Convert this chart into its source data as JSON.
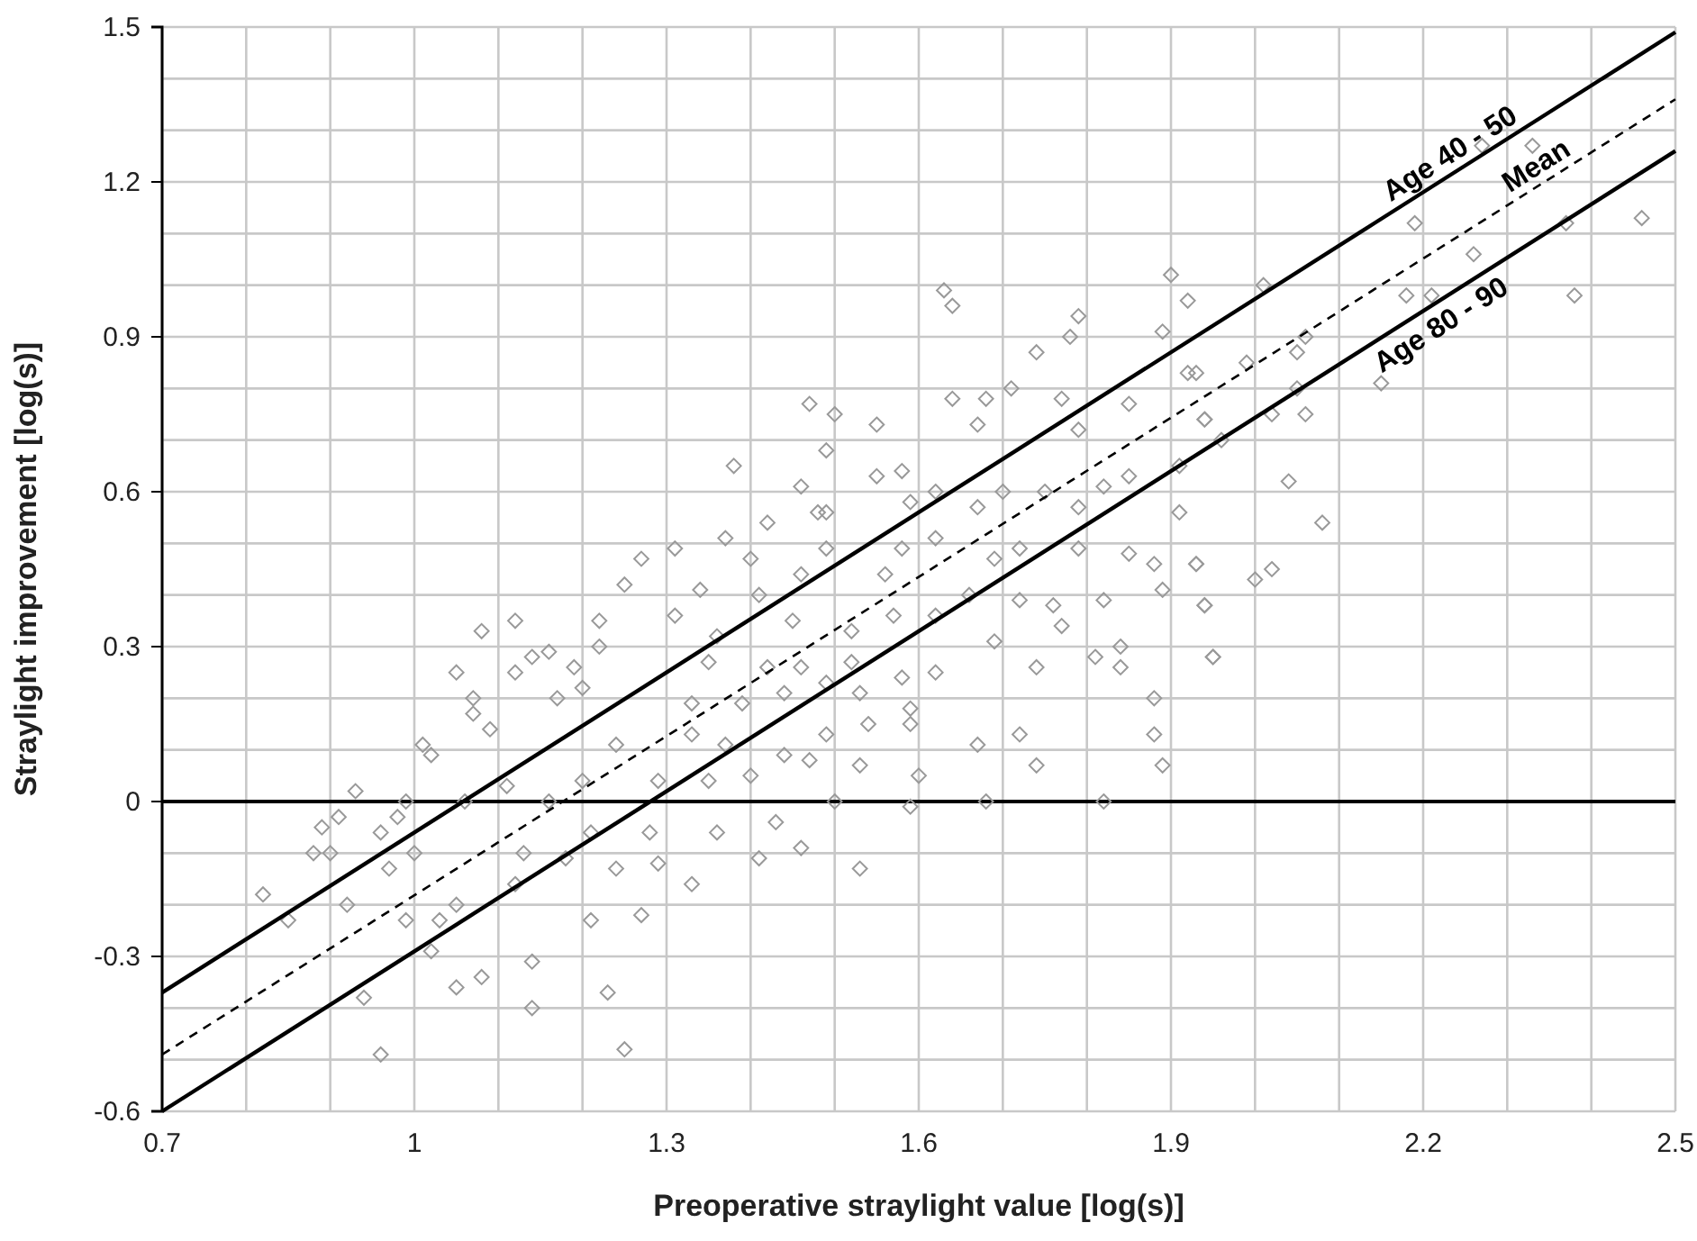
{
  "chart_data": {
    "type": "scatter",
    "xlabel": "Preoperative straylight value [log(s)]",
    "ylabel": "Straylight improvement [log(s)]",
    "xlim": [
      0.7,
      2.5
    ],
    "ylim": [
      -0.6,
      1.5
    ],
    "xticks": [
      0.7,
      {
        "value": 0.8,
        "label": null
      },
      {
        "value": 0.9,
        "label": null
      },
      1,
      {
        "value": 1.1,
        "label": null
      },
      {
        "value": 1.2,
        "label": null
      },
      1.3,
      {
        "value": 1.4,
        "label": null
      },
      {
        "value": 1.5,
        "label": null
      },
      1.6,
      {
        "value": 1.7,
        "label": null
      },
      {
        "value": 1.8,
        "label": null
      },
      1.9,
      {
        "value": 2.0,
        "label": null
      },
      {
        "value": 2.1,
        "label": null
      },
      2.2,
      {
        "value": 2.3,
        "label": null
      },
      {
        "value": 2.4,
        "label": null
      },
      2.5
    ],
    "yticks": [
      -0.6,
      {
        "value": -0.5,
        "label": null
      },
      {
        "value": -0.4,
        "label": null
      },
      -0.3,
      {
        "value": -0.2,
        "label": null
      },
      {
        "value": -0.1,
        "label": null
      },
      0,
      {
        "value": 0.1,
        "label": null
      },
      {
        "value": 0.2,
        "label": null
      },
      0.3,
      {
        "value": 0.4,
        "label": null
      },
      {
        "value": 0.5,
        "label": null
      },
      0.6,
      {
        "value": 0.7,
        "label": null
      },
      {
        "value": 0.8,
        "label": null
      },
      0.9,
      {
        "value": 1.0,
        "label": null
      },
      {
        "value": 1.1,
        "label": null
      },
      1.2,
      {
        "value": 1.3,
        "label": null
      },
      {
        "value": 1.4,
        "label": null
      },
      1.5
    ],
    "grid": true,
    "ref_lines": [
      {
        "axis": "y",
        "value": 0,
        "color": "#000000"
      }
    ],
    "series": [
      {
        "color": "#999999",
        "marker": "diamond",
        "x": [
          0.82,
          0.85,
          0.88,
          0.89,
          0.9,
          0.91,
          0.93,
          0.92,
          0.94,
          0.96,
          0.96,
          0.98,
          0.97,
          0.99,
          0.99,
          1.0,
          1.01,
          1.02,
          1.02,
          1.05,
          1.05,
          1.08,
          1.08,
          1.07,
          1.07,
          1.09,
          1.12,
          1.14,
          1.12,
          1.14,
          1.14,
          1.16,
          1.17,
          1.19,
          1.2,
          1.22,
          1.22,
          1.21,
          1.23,
          1.25,
          1.27,
          1.31,
          1.31,
          1.25,
          1.27,
          1.29,
          1.28,
          1.13,
          1.18,
          1.21,
          1.24,
          1.05,
          1.03,
          1.12,
          1.06,
          1.11,
          1.16,
          1.2,
          1.24,
          1.29,
          1.63,
          1.64,
          1.74,
          1.78,
          1.79,
          1.9,
          1.92,
          1.47,
          1.5,
          1.55,
          1.49,
          1.38,
          1.64,
          1.68,
          1.71,
          1.77,
          1.85,
          1.89,
          1.92,
          1.67,
          1.79,
          1.46,
          1.55,
          1.58,
          1.62,
          1.7,
          1.75,
          1.82,
          1.85,
          1.91,
          1.94,
          1.42,
          1.37,
          1.48,
          1.49,
          1.59,
          1.67,
          1.79,
          1.91,
          1.4,
          1.49,
          1.58,
          1.62,
          1.69,
          1.72,
          1.79,
          1.85,
          1.88,
          1.93,
          1.34,
          1.46,
          1.56,
          1.66,
          1.72,
          1.76,
          1.82,
          1.89,
          1.94,
          1.41,
          1.36,
          1.45,
          1.52,
          1.57,
          1.62,
          1.69,
          1.77,
          1.81,
          1.84,
          1.95,
          1.35,
          1.42,
          1.46,
          1.52,
          1.58,
          1.62,
          1.74,
          1.84,
          1.33,
          1.39,
          1.44,
          1.49,
          1.53,
          1.59,
          1.33,
          1.37,
          1.44,
          1.49,
          1.54,
          1.59,
          1.67,
          1.72,
          1.88,
          1.88,
          1.89,
          1.74,
          1.35,
          1.4,
          1.47,
          1.53,
          1.6,
          1.5,
          1.59,
          1.68,
          1.82,
          1.36,
          1.43,
          1.41,
          1.46,
          1.53,
          1.33,
          2.27,
          2.33,
          2.19,
          2.26,
          2.37,
          2.46,
          2.38,
          2.18,
          2.21,
          2.01,
          2.05,
          2.06,
          1.99,
          2.15,
          1.93,
          1.94,
          2.02,
          2.06,
          2.05,
          1.96,
          2.04,
          2.08,
          1.93,
          2.0,
          2.02,
          1.94,
          1.95
        ],
        "values": [
          -0.18,
          -0.23,
          -0.1,
          -0.05,
          -0.1,
          -0.03,
          0.02,
          -0.2,
          -0.38,
          -0.49,
          -0.06,
          -0.03,
          -0.13,
          -0.23,
          0.0,
          -0.1,
          0.11,
          0.09,
          -0.29,
          0.25,
          -0.36,
          -0.34,
          0.33,
          0.2,
          0.17,
          0.14,
          0.35,
          0.28,
          0.25,
          -0.31,
          -0.4,
          0.29,
          0.2,
          0.26,
          0.22,
          0.35,
          0.3,
          -0.23,
          -0.37,
          0.42,
          0.47,
          0.49,
          0.36,
          -0.48,
          -0.22,
          -0.12,
          -0.06,
          -0.1,
          -0.11,
          -0.06,
          -0.13,
          -0.2,
          -0.23,
          -0.16,
          0.0,
          0.03,
          0.0,
          0.04,
          0.11,
          0.04,
          0.99,
          0.96,
          0.87,
          0.9,
          0.94,
          1.02,
          0.97,
          0.77,
          0.75,
          0.73,
          0.68,
          0.65,
          0.78,
          0.78,
          0.8,
          0.78,
          0.77,
          0.91,
          0.83,
          0.73,
          0.72,
          0.61,
          0.63,
          0.64,
          0.6,
          0.6,
          0.6,
          0.61,
          0.63,
          0.65,
          0.74,
          0.54,
          0.51,
          0.56,
          0.56,
          0.58,
          0.57,
          0.57,
          0.56,
          0.47,
          0.49,
          0.49,
          0.51,
          0.47,
          0.49,
          0.49,
          0.48,
          0.46,
          0.46,
          0.41,
          0.44,
          0.44,
          0.4,
          0.39,
          0.38,
          0.39,
          0.41,
          0.38,
          0.4,
          0.32,
          0.35,
          0.33,
          0.36,
          0.36,
          0.31,
          0.34,
          0.28,
          0.3,
          0.28,
          0.27,
          0.26,
          0.26,
          0.27,
          0.24,
          0.25,
          0.26,
          0.26,
          0.19,
          0.19,
          0.21,
          0.23,
          0.21,
          0.18,
          0.13,
          0.11,
          0.09,
          0.13,
          0.15,
          0.15,
          0.11,
          0.13,
          0.13,
          0.2,
          0.07,
          0.07,
          0.04,
          0.05,
          0.08,
          0.07,
          0.05,
          0.0,
          -0.01,
          0.0,
          0.0,
          -0.06,
          -0.04,
          -0.11,
          -0.09,
          -0.13,
          -0.16,
          1.27,
          1.27,
          1.12,
          1.06,
          1.12,
          1.13,
          0.98,
          0.98,
          0.98,
          1.0,
          0.87,
          0.9,
          0.85,
          0.81,
          0.83,
          0.74,
          0.75,
          0.75,
          0.8,
          0.7,
          0.62,
          0.54,
          0.46,
          0.43,
          0.45,
          0.38,
          0.28
        ]
      },
      {
        "type": "line",
        "name": "Age 40 - 50",
        "color": "#000000",
        "line_style": "solid",
        "x": [
          0.7,
          2.5
        ],
        "values": [
          -0.37,
          1.49
        ]
      },
      {
        "type": "line",
        "name": "Mean",
        "color": "#000000",
        "line_style": "dashed",
        "x": [
          0.7,
          2.5
        ],
        "values": [
          -0.49,
          1.36
        ]
      },
      {
        "type": "line",
        "name": "Age 80 - 90",
        "color": "#000000",
        "line_style": "solid",
        "x": [
          0.7,
          2.5
        ],
        "values": [
          -0.6,
          1.26
        ]
      }
    ]
  }
}
